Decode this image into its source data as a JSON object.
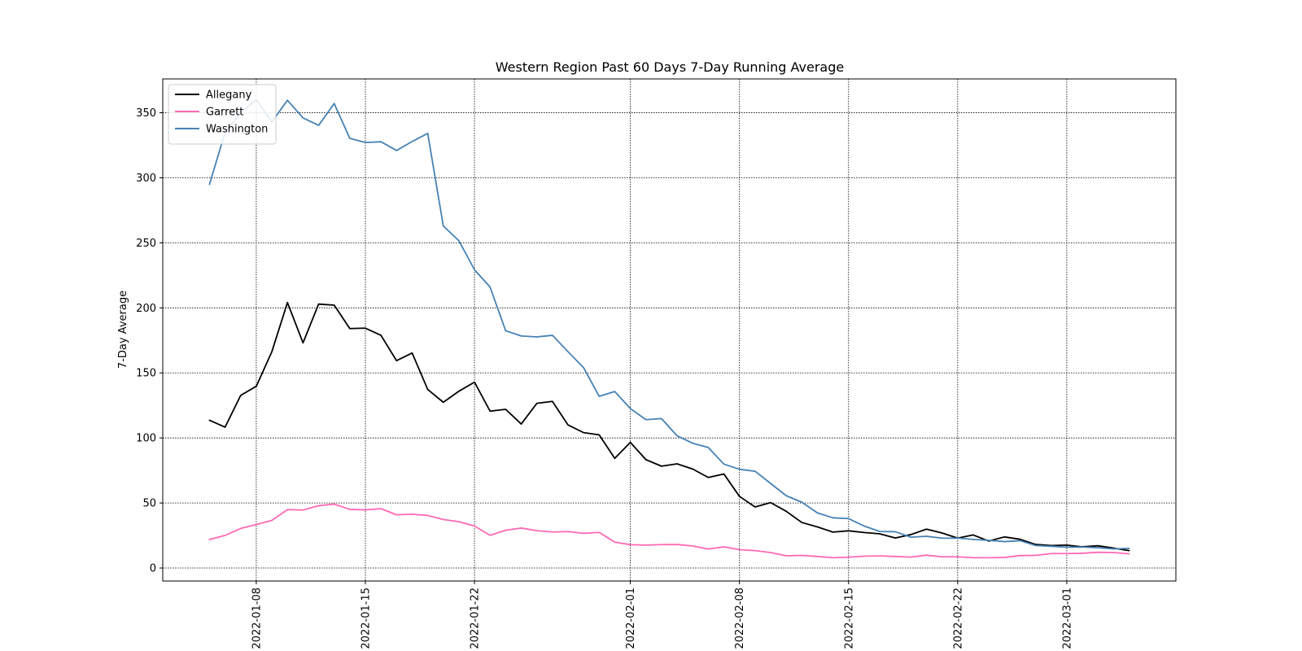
{
  "chart_data": {
    "type": "line",
    "title": "Western Region Past 60 Days 7-Day Running Average",
    "xlabel": "",
    "ylabel": "7-Day Average",
    "x_start": "2022-01-05",
    "x_ticks": [
      "2022-01-08",
      "2022-01-15",
      "2022-01-22",
      "2022-02-01",
      "2022-02-08",
      "2022-02-15",
      "2022-02-22",
      "2022-03-01"
    ],
    "xlim": [
      "2022-01-02",
      "2022-03-08"
    ],
    "ylim": [
      -10,
      376
    ],
    "y_ticks": [
      0,
      50,
      100,
      150,
      200,
      250,
      300,
      350
    ],
    "grid": true,
    "legend_position": "top-left",
    "series": [
      {
        "name": "Allegany",
        "color": "#000000",
        "values": [
          113.6,
          108.3,
          132.7,
          139.7,
          166.3,
          204.1,
          173.1,
          202.9,
          202.1,
          184.1,
          184.4,
          178.9,
          159.4,
          165.3,
          137.3,
          127.4,
          135.9,
          142.9,
          120.6,
          122.0,
          110.7,
          126.6,
          128.1,
          110.0,
          104.1,
          102.4,
          84.3,
          96.6,
          83.3,
          78.3,
          80.1,
          76.1,
          69.6,
          72.3,
          55.1,
          46.9,
          50.3,
          43.6,
          35.0,
          31.6,
          27.6,
          28.6,
          27.3,
          26.3,
          23.1,
          25.7,
          29.9,
          26.9,
          23.0,
          25.4,
          20.7,
          23.9,
          22.1,
          18.1,
          17.3,
          17.6,
          16.3,
          17.1,
          15.3,
          13.4
        ]
      },
      {
        "name": "Garrett",
        "color": "#ff69b4",
        "values": [
          21.9,
          25.1,
          30.4,
          33.4,
          36.6,
          44.9,
          44.6,
          47.9,
          49.1,
          45.1,
          44.7,
          45.6,
          40.9,
          41.4,
          40.4,
          37.3,
          35.6,
          32.3,
          25.1,
          29.0,
          30.7,
          28.7,
          27.7,
          28.0,
          26.7,
          27.4,
          19.9,
          17.9,
          17.6,
          18.0,
          18.1,
          16.9,
          14.6,
          16.3,
          14.1,
          13.4,
          11.9,
          9.4,
          9.7,
          8.9,
          7.9,
          8.3,
          9.1,
          9.3,
          8.9,
          8.4,
          9.9,
          8.6,
          8.6,
          7.9,
          7.9,
          8.1,
          9.6,
          9.7,
          11.1,
          11.1,
          11.3,
          12.1,
          11.9,
          10.9
        ]
      },
      {
        "name": "Washington",
        "color": "#4682b4",
        "values": [
          295.0,
          335.0,
          350.0,
          360.0,
          343.0,
          359.6,
          346.0,
          340.3,
          357.1,
          330.3,
          327.1,
          327.7,
          321.0,
          327.9,
          334.1,
          263.0,
          251.6,
          229.3,
          216.0,
          182.4,
          178.4,
          177.7,
          178.9,
          166.3,
          154.0,
          132.0,
          135.7,
          122.6,
          114.0,
          114.9,
          101.6,
          95.9,
          92.7,
          79.9,
          75.9,
          74.4,
          65.0,
          55.6,
          50.6,
          42.4,
          38.6,
          38.0,
          32.3,
          28.1,
          27.9,
          23.7,
          24.4,
          22.9,
          23.0,
          22.0,
          21.3,
          20.3,
          21.0,
          17.3,
          16.7,
          16.0,
          16.1,
          15.6,
          14.7,
          15.1
        ]
      }
    ]
  }
}
